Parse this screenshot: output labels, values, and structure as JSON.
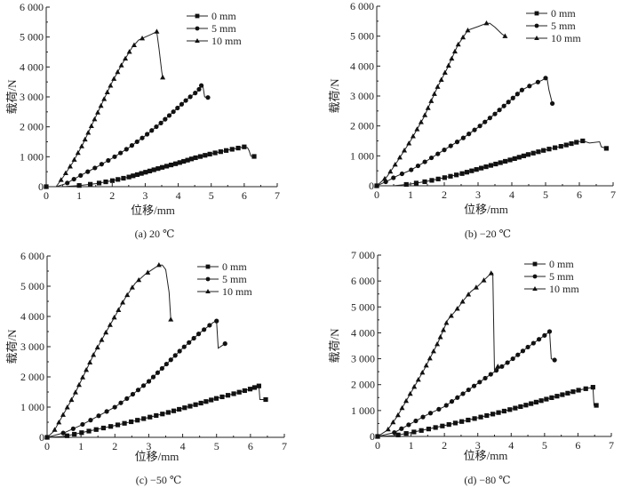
{
  "chart_data": [
    {
      "id": "a",
      "type": "line",
      "caption": "(a) 20 ℃",
      "xlabel": "位移/mm",
      "ylabel": "载荷/N",
      "xlim": [
        0,
        7
      ],
      "ylim": [
        0,
        6000
      ],
      "xticks": [
        0,
        1,
        2,
        3,
        4,
        5,
        6,
        7
      ],
      "xtick_labels": [
        "0",
        "1",
        "2",
        "3",
        "4",
        "5",
        "6",
        "7"
      ],
      "yticks": [
        0,
        1000,
        2000,
        3000,
        4000,
        5000,
        6000
      ],
      "ytick_labels": [
        "0",
        "1 000",
        "2 000",
        "3 000",
        "4 000",
        "5 000",
        "6 000"
      ],
      "legend": {
        "position": "top-right",
        "entries": [
          "0 mm",
          "5 mm",
          "10 mm"
        ]
      },
      "series": [
        {
          "name": "0 mm",
          "marker": "square",
          "points": [
            [
              0,
              0
            ],
            [
              0.3,
              0
            ],
            [
              0.6,
              10
            ],
            [
              1.0,
              40
            ],
            [
              1.5,
              100
            ],
            [
              2.0,
              200
            ],
            [
              2.5,
              320
            ],
            [
              3.0,
              480
            ],
            [
              3.5,
              640
            ],
            [
              4.0,
              790
            ],
            [
              4.5,
              960
            ],
            [
              5.0,
              1100
            ],
            [
              5.5,
              1220
            ],
            [
              6.0,
              1330
            ],
            [
              6.1,
              1300
            ],
            [
              6.15,
              1200
            ],
            [
              6.2,
              1020
            ],
            [
              6.3,
              1010
            ]
          ]
        },
        {
          "name": "5 mm",
          "marker": "circle",
          "points": [
            [
              0,
              0
            ],
            [
              0.3,
              0
            ],
            [
              0.6,
              100
            ],
            [
              1.0,
              350
            ],
            [
              1.5,
              640
            ],
            [
              2.0,
              950
            ],
            [
              2.5,
              1300
            ],
            [
              3.0,
              1700
            ],
            [
              3.5,
              2150
            ],
            [
              4.0,
              2650
            ],
            [
              4.3,
              2950
            ],
            [
              4.6,
              3200
            ],
            [
              4.7,
              3380
            ],
            [
              4.75,
              3350
            ],
            [
              4.8,
              3000
            ],
            [
              4.9,
              2980
            ]
          ]
        },
        {
          "name": "10 mm",
          "marker": "triangle",
          "points": [
            [
              0,
              0
            ],
            [
              0.3,
              0
            ],
            [
              0.5,
              300
            ],
            [
              0.8,
              800
            ],
            [
              1.1,
              1400
            ],
            [
              1.4,
              2100
            ],
            [
              1.7,
              2800
            ],
            [
              2.0,
              3500
            ],
            [
              2.3,
              4100
            ],
            [
              2.6,
              4650
            ],
            [
              2.8,
              4900
            ],
            [
              3.0,
              5000
            ],
            [
              3.2,
              5100
            ],
            [
              3.35,
              5180
            ],
            [
              3.42,
              4600
            ],
            [
              3.5,
              3850
            ],
            [
              3.53,
              3650
            ]
          ]
        }
      ]
    },
    {
      "id": "b",
      "type": "line",
      "caption": "(b) −20 ℃",
      "xlabel": "位移/mm",
      "ylabel": "载荷/N",
      "xlim": [
        0,
        7
      ],
      "ylim": [
        0,
        6000
      ],
      "xticks": [
        0,
        1,
        2,
        3,
        4,
        5,
        6,
        7
      ],
      "xtick_labels": [
        "0",
        "1",
        "2",
        "3",
        "4",
        "5",
        "6",
        "7"
      ],
      "yticks": [
        0,
        1000,
        2000,
        3000,
        4000,
        5000,
        6000
      ],
      "ytick_labels": [
        "0",
        "1 000",
        "2 000",
        "3 000",
        "4 000",
        "5 000",
        "6 000"
      ],
      "legend": {
        "position": "top-right",
        "entries": [
          "0 mm",
          "5 mm",
          "10 mm"
        ]
      },
      "series": [
        {
          "name": "0 mm",
          "marker": "square",
          "points": [
            [
              0,
              0
            ],
            [
              0.5,
              0
            ],
            [
              1.0,
              60
            ],
            [
              1.5,
              150
            ],
            [
              2.0,
              270
            ],
            [
              2.5,
              400
            ],
            [
              3.0,
              560
            ],
            [
              3.5,
              720
            ],
            [
              4.0,
              880
            ],
            [
              4.5,
              1050
            ],
            [
              5.0,
              1200
            ],
            [
              5.5,
              1330
            ],
            [
              6.0,
              1480
            ],
            [
              6.1,
              1500
            ],
            [
              6.3,
              1430
            ],
            [
              6.6,
              1470
            ],
            [
              6.65,
              1300
            ],
            [
              6.8,
              1250
            ]
          ]
        },
        {
          "name": "5 mm",
          "marker": "circle",
          "points": [
            [
              0,
              0
            ],
            [
              0.3,
              150
            ],
            [
              0.6,
              330
            ],
            [
              1.0,
              520
            ],
            [
              1.5,
              850
            ],
            [
              2.0,
              1200
            ],
            [
              2.5,
              1550
            ],
            [
              3.0,
              1950
            ],
            [
              3.5,
              2400
            ],
            [
              4.0,
              2900
            ],
            [
              4.3,
              3200
            ],
            [
              4.6,
              3380
            ],
            [
              4.9,
              3530
            ],
            [
              5.0,
              3600
            ],
            [
              5.05,
              3550
            ],
            [
              5.1,
              3200
            ],
            [
              5.2,
              2750
            ]
          ]
        },
        {
          "name": "10 mm",
          "marker": "triangle",
          "points": [
            [
              0,
              0
            ],
            [
              0.3,
              300
            ],
            [
              0.6,
              800
            ],
            [
              1.0,
              1500
            ],
            [
              1.4,
              2300
            ],
            [
              1.8,
              3300
            ],
            [
              2.1,
              3950
            ],
            [
              2.4,
              4700
            ],
            [
              2.7,
              5200
            ],
            [
              3.0,
              5320
            ],
            [
              3.25,
              5430
            ],
            [
              3.35,
              5430
            ],
            [
              3.5,
              5300
            ],
            [
              3.7,
              5080
            ],
            [
              3.8,
              5000
            ]
          ]
        }
      ]
    },
    {
      "id": "c",
      "type": "line",
      "caption": "(c) −50 ℃",
      "xlabel": "位移/mm",
      "ylabel": "载荷/N",
      "xlim": [
        0,
        7
      ],
      "ylim": [
        0,
        6000
      ],
      "xticks": [
        0,
        1,
        2,
        3,
        4,
        5,
        6,
        7
      ],
      "xtick_labels": [
        "0",
        "1",
        "2",
        "3",
        "4",
        "5",
        "6",
        "7"
      ],
      "yticks": [
        0,
        1000,
        2000,
        3000,
        4000,
        5000,
        6000
      ],
      "ytick_labels": [
        "0",
        "1 000",
        "2 000",
        "3 000",
        "4 000",
        "5 000",
        "6 000"
      ],
      "legend": {
        "position": "top-right",
        "entries": [
          "0 mm",
          "5 mm",
          "10 mm"
        ]
      },
      "series": [
        {
          "name": "0 mm",
          "marker": "square",
          "points": [
            [
              0,
              0
            ],
            [
              0.5,
              30
            ],
            [
              1.0,
              150
            ],
            [
              1.5,
              270
            ],
            [
              2.0,
              390
            ],
            [
              2.5,
              520
            ],
            [
              3.0,
              660
            ],
            [
              3.5,
              800
            ],
            [
              4.0,
              960
            ],
            [
              4.5,
              1120
            ],
            [
              5.0,
              1290
            ],
            [
              5.5,
              1440
            ],
            [
              6.0,
              1600
            ],
            [
              6.25,
              1700
            ],
            [
              6.28,
              1250
            ],
            [
              6.45,
              1250
            ]
          ]
        },
        {
          "name": "5 mm",
          "marker": "circle",
          "points": [
            [
              0,
              0
            ],
            [
              0.5,
              150
            ],
            [
              1.0,
              400
            ],
            [
              1.5,
              700
            ],
            [
              2.0,
              1000
            ],
            [
              2.5,
              1400
            ],
            [
              3.0,
              1850
            ],
            [
              3.5,
              2400
            ],
            [
              4.0,
              2950
            ],
            [
              4.5,
              3450
            ],
            [
              4.9,
              3800
            ],
            [
              5.0,
              3850
            ],
            [
              5.05,
              2950
            ],
            [
              5.25,
              3100
            ]
          ]
        },
        {
          "name": "10 mm",
          "marker": "triangle",
          "points": [
            [
              0,
              0
            ],
            [
              0.2,
              200
            ],
            [
              0.5,
              800
            ],
            [
              0.8,
              1400
            ],
            [
              1.1,
              2100
            ],
            [
              1.4,
              2800
            ],
            [
              1.7,
              3400
            ],
            [
              2.0,
              4000
            ],
            [
              2.3,
              4600
            ],
            [
              2.6,
              5100
            ],
            [
              2.9,
              5400
            ],
            [
              3.1,
              5550
            ],
            [
              3.3,
              5700
            ],
            [
              3.4,
              5700
            ],
            [
              3.5,
              5550
            ],
            [
              3.6,
              4800
            ],
            [
              3.65,
              3900
            ]
          ]
        }
      ]
    },
    {
      "id": "d",
      "type": "line",
      "caption": "(d) −80 ℃",
      "xlabel": "位移/mm",
      "ylabel": "载荷/N",
      "xlim": [
        0,
        7
      ],
      "ylim": [
        0,
        7000
      ],
      "xticks": [
        0,
        1,
        2,
        3,
        4,
        5,
        6,
        7
      ],
      "xtick_labels": [
        "0",
        "1",
        "2",
        "3",
        "4",
        "5",
        "6",
        "7"
      ],
      "yticks": [
        0,
        1000,
        2000,
        3000,
        4000,
        5000,
        6000,
        7000
      ],
      "ytick_labels": [
        "0",
        "1 000",
        "2 000",
        "3 000",
        "4 000",
        "5 000",
        "6 000",
        "7 000"
      ],
      "legend": {
        "position": "top-right",
        "entries": [
          "0 mm",
          "5 mm",
          "10 mm"
        ]
      },
      "series": [
        {
          "name": "0 mm",
          "marker": "square",
          "points": [
            [
              0,
              0
            ],
            [
              0.5,
              30
            ],
            [
              1.0,
              150
            ],
            [
              1.5,
              280
            ],
            [
              2.0,
              420
            ],
            [
              2.5,
              570
            ],
            [
              3.0,
              720
            ],
            [
              3.5,
              880
            ],
            [
              4.0,
              1050
            ],
            [
              4.5,
              1230
            ],
            [
              5.0,
              1420
            ],
            [
              5.5,
              1600
            ],
            [
              6.0,
              1780
            ],
            [
              6.45,
              1900
            ],
            [
              6.48,
              1200
            ],
            [
              6.55,
              1200
            ]
          ]
        },
        {
          "name": "5 mm",
          "marker": "circle",
          "points": [
            [
              0,
              0
            ],
            [
              0.5,
              150
            ],
            [
              1.0,
              500
            ],
            [
              1.5,
              850
            ],
            [
              2.0,
              1150
            ],
            [
              2.5,
              1600
            ],
            [
              3.0,
              2050
            ],
            [
              3.5,
              2500
            ],
            [
              4.0,
              2950
            ],
            [
              4.5,
              3450
            ],
            [
              5.0,
              3900
            ],
            [
              5.15,
              4050
            ],
            [
              5.2,
              3000
            ],
            [
              5.3,
              2950
            ]
          ]
        },
        {
          "name": "10 mm",
          "marker": "triangle",
          "points": [
            [
              0,
              0
            ],
            [
              0.3,
              250
            ],
            [
              0.6,
              800
            ],
            [
              1.0,
              1700
            ],
            [
              1.4,
              2600
            ],
            [
              1.8,
              3600
            ],
            [
              2.1,
              4500
            ],
            [
              2.4,
              4950
            ],
            [
              2.6,
              5300
            ],
            [
              2.8,
              5600
            ],
            [
              3.0,
              5800
            ],
            [
              3.2,
              6050
            ],
            [
              3.4,
              6300
            ],
            [
              3.45,
              6300
            ],
            [
              3.5,
              2500
            ],
            [
              3.6,
              2700
            ]
          ]
        }
      ]
    }
  ]
}
